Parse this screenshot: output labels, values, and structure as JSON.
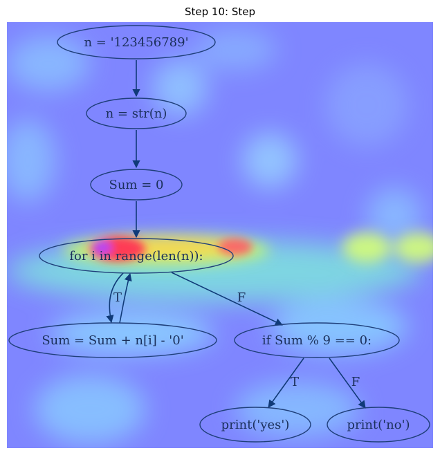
{
  "figure": {
    "title": "Step 10: Step"
  },
  "graph": {
    "nodes": [
      {
        "id": "n1",
        "label": "n = '123456789'"
      },
      {
        "id": "n2",
        "label": "n = str(n)"
      },
      {
        "id": "n3",
        "label": "Sum = 0"
      },
      {
        "id": "n4",
        "label": "for i in range(len(n)):"
      },
      {
        "id": "n5",
        "label": "Sum = Sum + n[i] - '0'"
      },
      {
        "id": "n6",
        "label": "if Sum % 9 == 0:"
      },
      {
        "id": "n7",
        "label": "print('yes')"
      },
      {
        "id": "n8",
        "label": "print('no')"
      }
    ],
    "edges": [
      {
        "from": "n1",
        "to": "n2",
        "label": ""
      },
      {
        "from": "n2",
        "to": "n3",
        "label": ""
      },
      {
        "from": "n3",
        "to": "n4",
        "label": ""
      },
      {
        "from": "n4",
        "to": "n5",
        "label": "T"
      },
      {
        "from": "n5",
        "to": "n4",
        "label": ""
      },
      {
        "from": "n4",
        "to": "n6",
        "label": "F"
      },
      {
        "from": "n6",
        "to": "n7",
        "label": "T"
      },
      {
        "from": "n6",
        "to": "n8",
        "label": "F"
      }
    ]
  },
  "heatmap": {
    "colormap": "jet",
    "base_color": "#7f86ff",
    "hotspot_color": "#ff2a55",
    "focus_node": "n4"
  },
  "colors": {
    "node_stroke": "#1f3f7a",
    "edge_stroke": "#103a78",
    "text": "#1a2f5a"
  }
}
